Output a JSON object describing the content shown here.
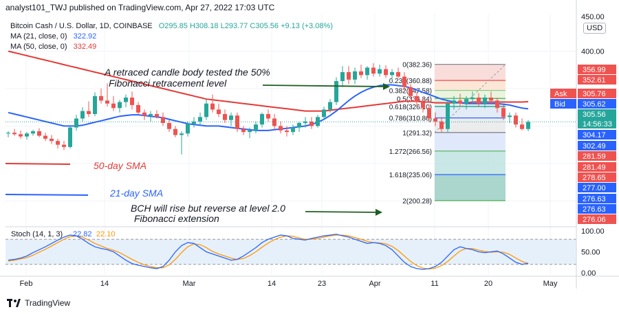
{
  "header": {
    "text": "analyst101_TWJ published on TradingView.com, Apr 27, 2022 17:03 UTC"
  },
  "symbol": {
    "name": "Bitcoin Cash / U.S. Dollar, 1D, COINBASE",
    "ohlc": "O295.85 H308.18 L293.77 C305.56 +9.13 (+3.08%)"
  },
  "indicators": {
    "ma21": {
      "label": "MA (21, close, 0)",
      "value": "322.92",
      "color": "#2962ff"
    },
    "ma50": {
      "label": "MA (50, close, 0)",
      "value": "332.49",
      "color": "#e53935"
    }
  },
  "currency": "USD",
  "annotations": {
    "retrace_line1": "A retraced candle body tested the 50%",
    "retrace_line2": "Fibonacci retracement level",
    "sma50_label": "50-day SMA",
    "sma21_label": "21-day SMA",
    "bch_line1": "BCH will rise but reverse at level 2.0",
    "bch_line2": "Fibonacci extension"
  },
  "stoch": {
    "label": "Stoch (14, 1, 3)",
    "k": "22.82",
    "d": "22.10"
  },
  "footer": {
    "brand": "TradingView"
  },
  "colors": {
    "up": "#26a69a",
    "down": "#ef5350",
    "ma21": "#2962ff",
    "ma50": "#e53935",
    "stoch_k": "#2962ff",
    "stoch_d": "#ff9800"
  },
  "chart_data": {
    "type": "candlestick",
    "price_axis": {
      "ticks": [
        "450.00",
        "400.00"
      ],
      "ylim": [
        170,
        450
      ]
    },
    "price_labels": [
      {
        "text": "356.99",
        "color": "#ef5350"
      },
      {
        "text": "352.61",
        "color": "#ef5350"
      },
      {
        "text": "305.76",
        "color": "#ef5350",
        "tag": "Ask"
      },
      {
        "text": "305.62",
        "color": "#2962ff",
        "tag": "Bid"
      },
      {
        "text": "305.56",
        "color": "#26a69a",
        "sub": "14:56:33"
      },
      {
        "text": "304.17",
        "color": "#2962ff"
      },
      {
        "text": "302.49",
        "color": "#2962ff"
      },
      {
        "text": "281.59",
        "color": "#ef5350"
      },
      {
        "text": "281.49",
        "color": "#ef5350"
      },
      {
        "text": "278.65",
        "color": "#ef5350"
      },
      {
        "text": "277.00",
        "color": "#2962ff"
      },
      {
        "text": "276.63",
        "color": "#2962ff"
      },
      {
        "text": "276.63",
        "color": "#2962ff"
      },
      {
        "text": "276.06",
        "color": "#ef5350"
      }
    ],
    "x_ticks": [
      "Feb",
      "14",
      "Mar",
      "14",
      "23",
      "Apr",
      "11",
      "20",
      "May"
    ],
    "fibonacci": [
      {
        "level": "0",
        "price": 382.36,
        "label": "0(382.36)"
      },
      {
        "level": "0.236",
        "price": 360.88,
        "label": "0.236(360.88)"
      },
      {
        "level": "0.382",
        "price": 347.58,
        "label": "0.382(347.58)"
      },
      {
        "level": "0.5",
        "price": 336.84,
        "label": "0.5(336.84)"
      },
      {
        "level": "0.618",
        "price": 326.1,
        "label": "0.618(326.10)"
      },
      {
        "level": "0.786",
        "price": 310.8,
        "label": "0.786(310.80)"
      },
      {
        "level": "1",
        "price": 291.32,
        "label": "1(291.32)"
      },
      {
        "level": "1.272",
        "price": 266.56,
        "label": "1.272(266.56)"
      },
      {
        "level": "1.618",
        "price": 235.06,
        "label": "1.618(235.06)"
      },
      {
        "level": "2",
        "price": 200.28,
        "label": "2(200.28)"
      }
    ],
    "candles": [
      [
        290,
        293,
        285,
        291
      ],
      [
        291,
        296,
        287,
        289
      ],
      [
        289,
        294,
        283,
        286
      ],
      [
        286,
        292,
        282,
        290
      ],
      [
        290,
        295,
        287,
        293
      ],
      [
        293,
        297,
        285,
        287
      ],
      [
        287,
        291,
        280,
        283
      ],
      [
        283,
        288,
        276,
        280
      ],
      [
        280,
        283,
        270,
        275
      ],
      [
        275,
        280,
        268,
        272
      ],
      [
        272,
        300,
        270,
        298
      ],
      [
        298,
        315,
        294,
        310
      ],
      [
        310,
        325,
        306,
        320
      ],
      [
        320,
        333,
        312,
        316
      ],
      [
        316,
        345,
        313,
        340
      ],
      [
        340,
        350,
        330,
        334
      ],
      [
        334,
        357,
        326,
        330
      ],
      [
        330,
        340,
        320,
        324
      ],
      [
        324,
        335,
        318,
        332
      ],
      [
        332,
        342,
        325,
        338
      ],
      [
        338,
        346,
        322,
        328
      ],
      [
        328,
        332,
        315,
        318
      ],
      [
        318,
        322,
        308,
        314
      ],
      [
        314,
        320,
        306,
        316
      ],
      [
        316,
        321,
        310,
        312
      ],
      [
        312,
        318,
        300,
        304
      ],
      [
        304,
        308,
        292,
        296
      ],
      [
        296,
        300,
        285,
        288
      ],
      [
        288,
        293,
        262,
        290
      ],
      [
        290,
        306,
        286,
        303
      ],
      [
        303,
        312,
        298,
        306
      ],
      [
        306,
        318,
        300,
        312
      ],
      [
        312,
        336,
        308,
        330
      ],
      [
        330,
        342,
        318,
        322
      ],
      [
        322,
        330,
        312,
        316
      ],
      [
        316,
        322,
        304,
        308
      ],
      [
        308,
        318,
        300,
        314
      ],
      [
        314,
        318,
        292,
        296
      ],
      [
        296,
        300,
        288,
        292
      ],
      [
        292,
        298,
        284,
        294
      ],
      [
        294,
        306,
        290,
        302
      ],
      [
        302,
        318,
        298,
        316
      ],
      [
        316,
        322,
        306,
        310
      ],
      [
        310,
        316,
        296,
        300
      ],
      [
        300,
        306,
        290,
        294
      ],
      [
        294,
        300,
        286,
        292
      ],
      [
        292,
        302,
        288,
        298
      ],
      [
        298,
        306,
        292,
        304
      ],
      [
        304,
        312,
        298,
        306
      ],
      [
        306,
        312,
        296,
        300
      ],
      [
        300,
        315,
        298,
        312
      ],
      [
        312,
        326,
        308,
        322
      ],
      [
        322,
        336,
        318,
        332
      ],
      [
        332,
        365,
        328,
        360
      ],
      [
        360,
        380,
        352,
        372
      ],
      [
        372,
        380,
        356,
        362
      ],
      [
        362,
        378,
        356,
        373
      ],
      [
        373,
        382,
        364,
        368
      ],
      [
        368,
        380,
        362,
        378
      ],
      [
        378,
        384,
        366,
        370
      ],
      [
        370,
        382,
        366,
        376
      ],
      [
        376,
        381,
        364,
        368
      ],
      [
        368,
        376,
        360,
        372
      ],
      [
        372,
        378,
        364,
        366
      ],
      [
        366,
        372,
        348,
        352
      ],
      [
        352,
        356,
        336,
        340
      ],
      [
        340,
        346,
        326,
        332
      ],
      [
        332,
        338,
        318,
        324
      ],
      [
        324,
        328,
        305,
        310
      ],
      [
        310,
        318,
        300,
        306
      ],
      [
        306,
        312,
        291,
        296
      ],
      [
        296,
        334,
        292,
        330
      ],
      [
        330,
        340,
        322,
        334
      ],
      [
        334,
        343,
        326,
        330
      ],
      [
        330,
        340,
        322,
        336
      ],
      [
        336,
        346,
        330,
        338
      ],
      [
        338,
        344,
        326,
        330
      ],
      [
        330,
        342,
        324,
        338
      ],
      [
        338,
        346,
        330,
        334
      ],
      [
        334,
        338,
        318,
        324
      ],
      [
        324,
        328,
        308,
        312
      ],
      [
        312,
        318,
        304,
        314
      ],
      [
        314,
        318,
        298,
        302
      ],
      [
        302,
        310,
        294,
        296
      ],
      [
        296,
        308,
        293,
        305.56
      ]
    ],
    "ma50": [
      400,
      398,
      396,
      394,
      392,
      390,
      388,
      386,
      384,
      382,
      380,
      378,
      376,
      374,
      372,
      370,
      368,
      366,
      364,
      362,
      360,
      358,
      356,
      354,
      352,
      350,
      348,
      346,
      344,
      342,
      340,
      338,
      336,
      335,
      334,
      333,
      332,
      331,
      330,
      329,
      328,
      327,
      326,
      325,
      324,
      323,
      322,
      321,
      320,
      320,
      320,
      320,
      321,
      322,
      323,
      324,
      325,
      326,
      327,
      328,
      329,
      330,
      331,
      332,
      333,
      333,
      333,
      332,
      332,
      331,
      331,
      331,
      331,
      331,
      331,
      332,
      332,
      332,
      332,
      332,
      332,
      332,
      332,
      332,
      332.49
    ],
    "ma21": [
      318,
      316,
      314,
      312,
      310,
      308,
      306,
      304,
      302,
      300,
      300,
      300,
      301,
      303,
      305,
      307,
      309,
      311,
      313,
      314,
      315,
      315,
      314,
      313,
      312,
      311,
      309,
      307,
      305,
      303,
      302,
      301,
      300,
      300,
      300,
      299,
      298,
      297,
      296,
      295,
      294,
      294,
      294,
      295,
      296,
      297,
      298,
      299,
      300,
      302,
      305,
      309,
      314,
      320,
      327,
      334,
      340,
      345,
      349,
      352,
      354,
      355,
      355,
      354,
      353,
      351,
      348,
      345,
      342,
      339,
      336,
      334,
      332,
      331,
      330,
      330,
      330,
      330,
      330,
      330,
      329,
      328,
      326,
      324,
      322.92
    ],
    "stoch_k": [
      30,
      32,
      35,
      40,
      48,
      55,
      62,
      70,
      78,
      85,
      90,
      88,
      80,
      70,
      62,
      58,
      55,
      50,
      40,
      30,
      22,
      18,
      15,
      12,
      10,
      15,
      30,
      50,
      65,
      72,
      70,
      60,
      50,
      45,
      40,
      35,
      30,
      32,
      40,
      50,
      60,
      72,
      80,
      85,
      90,
      88,
      82,
      80,
      78,
      82,
      85,
      88,
      90,
      92,
      88,
      85,
      80,
      75,
      70,
      72,
      70,
      65,
      55,
      40,
      25,
      15,
      10,
      8,
      10,
      15,
      25,
      40,
      55,
      62,
      58,
      55,
      50,
      48,
      50,
      52,
      45,
      35,
      25,
      20,
      22.82
    ],
    "stoch_d": [
      28,
      30,
      33,
      36,
      42,
      49,
      56,
      64,
      72,
      80,
      86,
      88,
      85,
      78,
      70,
      64,
      58,
      54,
      48,
      40,
      32,
      25,
      19,
      15,
      12,
      12,
      19,
      32,
      48,
      62,
      69,
      67,
      60,
      51,
      45,
      40,
      35,
      32,
      34,
      41,
      50,
      61,
      71,
      79,
      85,
      88,
      87,
      83,
      80,
      80,
      82,
      85,
      88,
      90,
      90,
      88,
      84,
      80,
      75,
      72,
      71,
      69,
      63,
      53,
      40,
      27,
      17,
      11,
      9,
      11,
      17,
      27,
      40,
      52,
      58,
      58,
      54,
      51,
      49,
      50,
      49,
      44,
      35,
      27,
      22.1
    ],
    "stoch_axis": [
      "100.00",
      "50.00",
      "0.00"
    ]
  }
}
